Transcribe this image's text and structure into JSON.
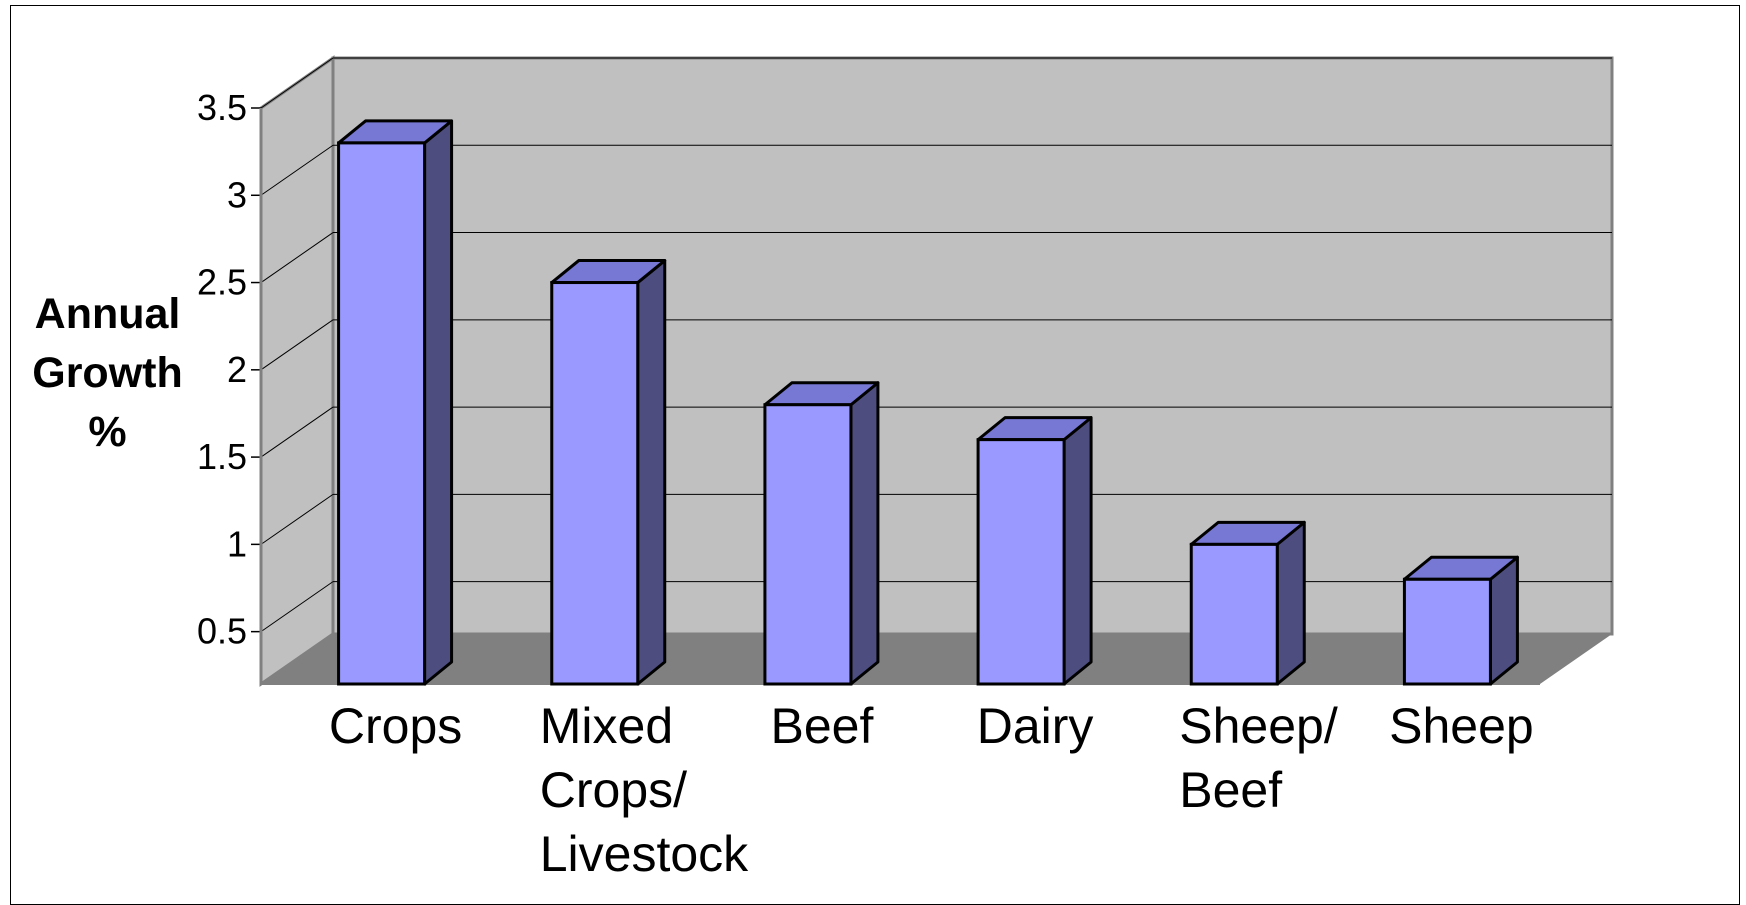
{
  "chart_data": {
    "type": "bar",
    "style": "3d-column",
    "title": "",
    "xlabel": "",
    "ylabel_lines": [
      "Annual",
      "Growth",
      "%"
    ],
    "categories": [
      [
        "Crops"
      ],
      [
        "Mixed",
        "Crops/",
        "Livestock"
      ],
      [
        "Beef"
      ],
      [
        "Dairy"
      ],
      [
        "Sheep/",
        "Beef"
      ],
      [
        "Sheep"
      ]
    ],
    "values": [
      3.3,
      2.5,
      1.8,
      1.6,
      1.0,
      0.8
    ],
    "ylim": [
      0.2,
      3.5
    ],
    "yticks": [
      "0.5",
      "1",
      "1.5",
      "2",
      "2.5",
      "3",
      "3.5"
    ],
    "grid": true,
    "legend": "none",
    "colors": {
      "bar_front": "#9999ff",
      "bar_side": "#4d4d80",
      "bar_top": "#7777d4",
      "wall": "#c0c0c0",
      "floor": "#808080"
    }
  }
}
